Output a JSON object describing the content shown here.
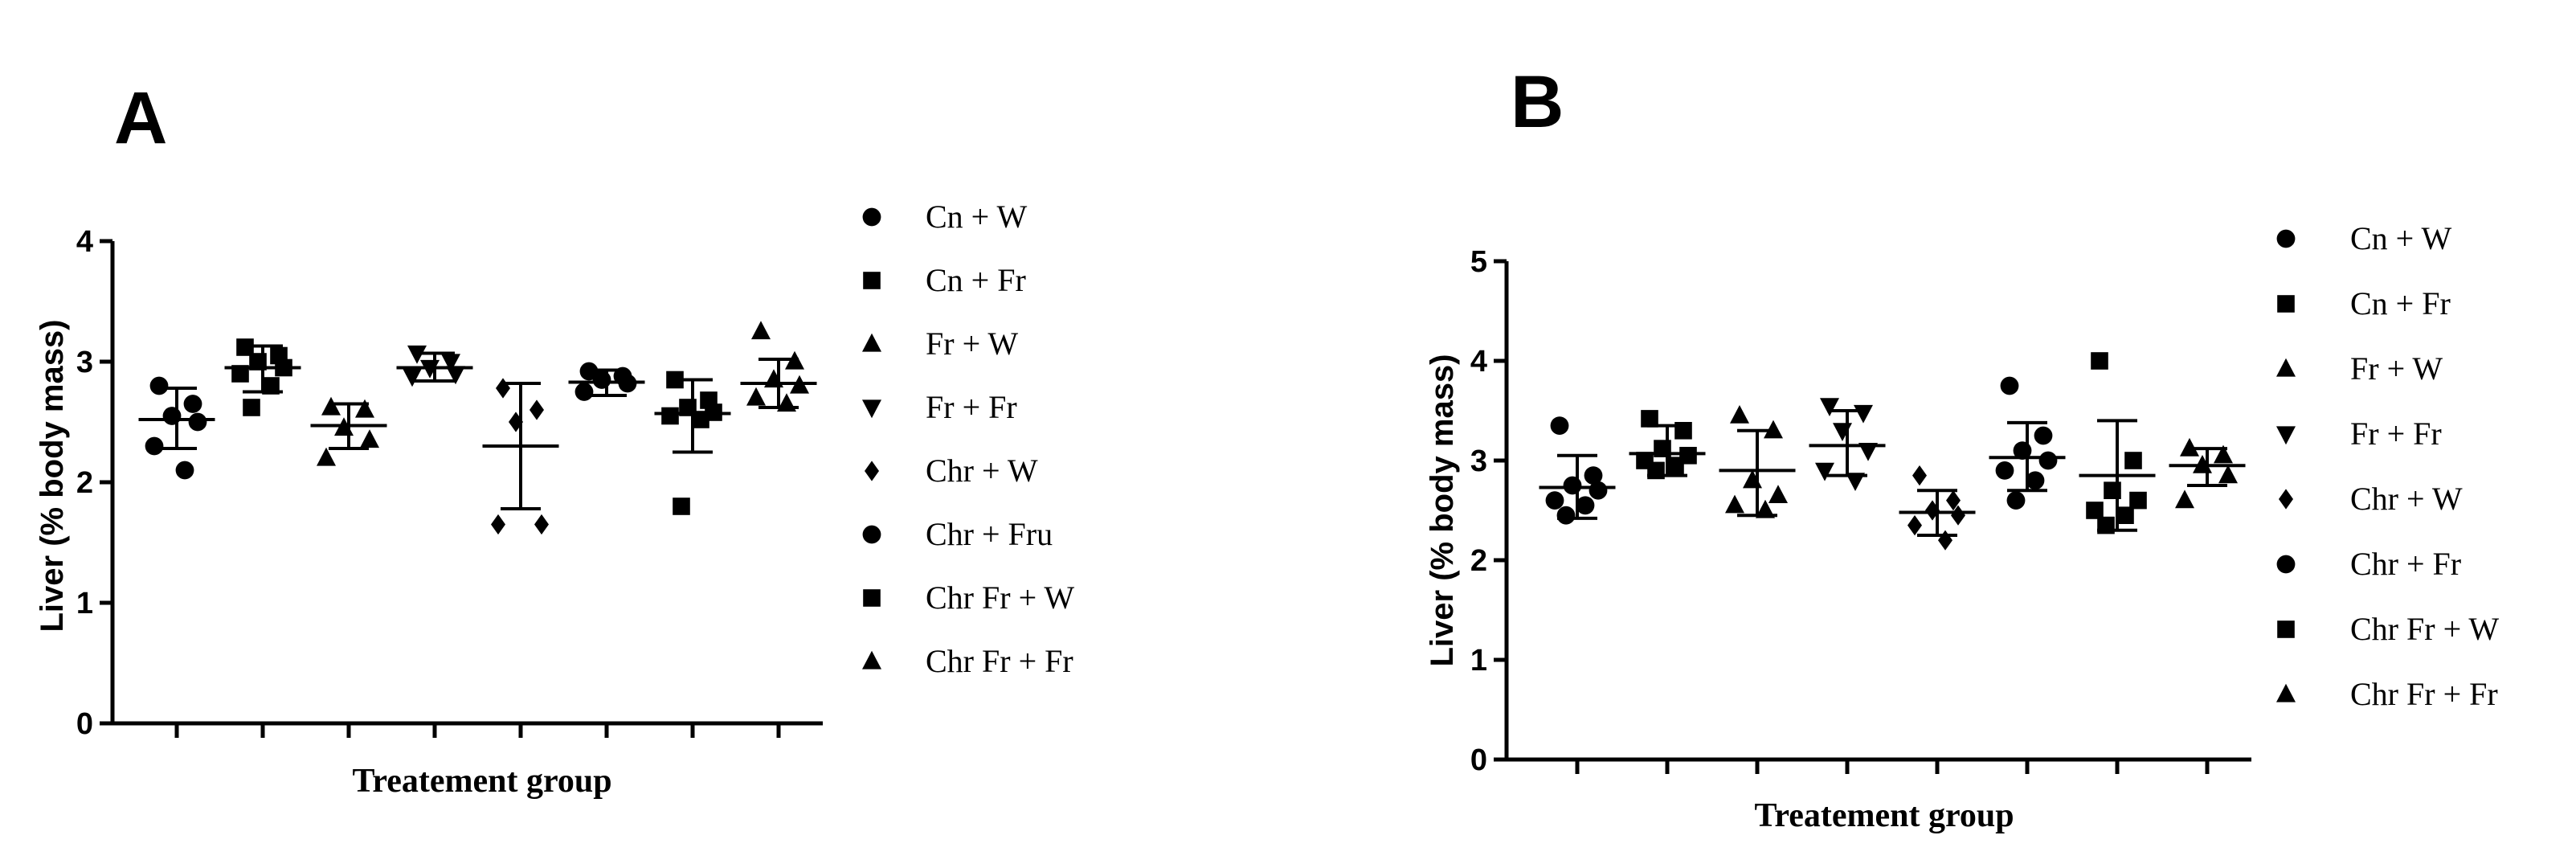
{
  "chart_data": [
    {
      "type": "scatter",
      "panel": "A",
      "xlabel": "Treatement group",
      "ylabel": "Liver (% body mass)",
      "ylim": [
        0,
        4
      ],
      "yticks": [
        "0",
        "1",
        "2",
        "3",
        "4"
      ],
      "legend_position": "right",
      "series": [
        {
          "name": "Cn + W",
          "marker": "circle",
          "mean": 2.52,
          "err_low": 2.28,
          "err_high": 2.78,
          "points": [
            2.8,
            2.65,
            2.55,
            2.5,
            2.3,
            2.1
          ]
        },
        {
          "name": "Cn + Fr",
          "marker": "square",
          "mean": 2.95,
          "err_low": 2.75,
          "err_high": 3.13,
          "points": [
            3.12,
            3.05,
            3.0,
            2.95,
            2.9,
            2.8,
            2.62
          ]
        },
        {
          "name": "Fr + W",
          "marker": "triangle-up",
          "mean": 2.47,
          "err_low": 2.28,
          "err_high": 2.65,
          "points": [
            2.62,
            2.6,
            2.45,
            2.35,
            2.2
          ]
        },
        {
          "name": "Fr + Fr",
          "marker": "triangle-down",
          "mean": 2.95,
          "err_low": 2.84,
          "err_high": 3.07,
          "points": [
            3.07,
            3.0,
            2.95,
            2.9,
            2.88
          ]
        },
        {
          "name": "Chr + W",
          "marker": "diamond",
          "mean": 2.3,
          "err_low": 1.78,
          "err_high": 2.82,
          "points": [
            2.78,
            2.6,
            2.5,
            1.65,
            1.65
          ]
        },
        {
          "name": "Chr + Fru",
          "marker": "circle",
          "mean": 2.83,
          "err_low": 2.72,
          "err_high": 2.93,
          "points": [
            2.92,
            2.88,
            2.85,
            2.82,
            2.75
          ]
        },
        {
          "name": "Chr Fr + W",
          "marker": "square",
          "mean": 2.57,
          "err_low": 2.25,
          "err_high": 2.85,
          "points": [
            2.85,
            2.68,
            2.62,
            2.58,
            2.55,
            2.52,
            1.8
          ]
        },
        {
          "name": "Chr Fr + Fr",
          "marker": "triangle-up",
          "mean": 2.82,
          "err_low": 2.62,
          "err_high": 3.02,
          "points": [
            3.25,
            3.0,
            2.85,
            2.8,
            2.7,
            2.65
          ]
        }
      ]
    },
    {
      "type": "scatter",
      "panel": "B",
      "xlabel": "Treatement group",
      "ylabel": "Liver (% body mass)",
      "ylim": [
        0,
        5
      ],
      "yticks": [
        "0",
        "1",
        "2",
        "3",
        "4",
        "5"
      ],
      "legend_position": "right",
      "series": [
        {
          "name": "Cn + W",
          "marker": "circle",
          "mean": 2.73,
          "err_low": 2.42,
          "err_high": 3.05,
          "points": [
            3.35,
            2.85,
            2.75,
            2.7,
            2.6,
            2.55,
            2.45
          ]
        },
        {
          "name": "Cn + Fr",
          "marker": "square",
          "mean": 3.07,
          "err_low": 2.85,
          "err_high": 3.35,
          "points": [
            3.42,
            3.3,
            3.12,
            3.05,
            3.0,
            2.95,
            2.9
          ]
        },
        {
          "name": "Fr + W",
          "marker": "triangle-up",
          "mean": 2.9,
          "err_low": 2.45,
          "err_high": 3.3,
          "points": [
            3.45,
            3.3,
            2.8,
            2.65,
            2.55,
            2.5
          ]
        },
        {
          "name": "Fr + Fr",
          "marker": "triangle-down",
          "mean": 3.15,
          "err_low": 2.85,
          "err_high": 3.5,
          "points": [
            3.55,
            3.48,
            3.3,
            3.1,
            2.9,
            2.8
          ]
        },
        {
          "name": "Chr + W",
          "marker": "diamond",
          "mean": 2.48,
          "err_low": 2.25,
          "err_high": 2.7,
          "points": [
            2.85,
            2.6,
            2.5,
            2.45,
            2.35,
            2.2
          ]
        },
        {
          "name": "Chr + Fr",
          "marker": "circle",
          "mean": 3.03,
          "err_low": 2.7,
          "err_high": 3.38,
          "points": [
            3.75,
            3.25,
            3.1,
            3.0,
            2.9,
            2.8,
            2.6
          ]
        },
        {
          "name": "Chr Fr + W",
          "marker": "square",
          "mean": 2.85,
          "err_low": 2.3,
          "err_high": 3.4,
          "points": [
            4.0,
            3.0,
            2.7,
            2.6,
            2.5,
            2.45,
            2.35
          ]
        },
        {
          "name": "Chr Fr + Fr",
          "marker": "triangle-up",
          "mean": 2.95,
          "err_low": 2.75,
          "err_high": 3.12,
          "points": [
            3.12,
            3.05,
            2.95,
            2.85,
            2.6
          ]
        }
      ]
    }
  ]
}
